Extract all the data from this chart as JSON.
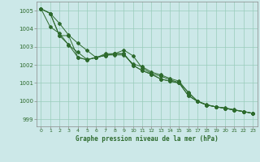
{
  "title": "Graphe pression niveau de la mer (hPa)",
  "bg_color": "#cce8e8",
  "grid_color": "#99ccbb",
  "line_color": "#2d6a2d",
  "xlim": [
    -0.5,
    23.5
  ],
  "ylim": [
    998.6,
    1005.5
  ],
  "xticks": [
    0,
    1,
    2,
    3,
    4,
    5,
    6,
    7,
    8,
    9,
    10,
    11,
    12,
    13,
    14,
    15,
    16,
    17,
    18,
    19,
    20,
    21,
    22,
    23
  ],
  "yticks": [
    999,
    1000,
    1001,
    1002,
    1003,
    1004,
    1005
  ],
  "series1": [
    1005.1,
    1004.85,
    1004.3,
    1003.65,
    1003.2,
    1002.8,
    1002.4,
    1002.55,
    1002.55,
    1002.55,
    1002.05,
    1001.9,
    1001.6,
    1001.45,
    1001.25,
    1001.1,
    1000.45,
    1000.0,
    999.8,
    999.68,
    999.62,
    999.52,
    999.42,
    999.32
  ],
  "series2": [
    1005.1,
    1004.1,
    1003.75,
    1003.1,
    1002.7,
    1002.3,
    1002.4,
    1002.62,
    1002.62,
    1002.82,
    1002.5,
    1001.82,
    1001.52,
    1001.38,
    1001.18,
    1001.02,
    1000.5,
    999.98,
    999.78,
    999.68,
    999.6,
    999.5,
    999.42,
    999.32
  ],
  "series3": [
    1005.1,
    1004.85,
    1003.62,
    1003.12,
    1002.42,
    1002.28,
    1002.42,
    1002.52,
    1002.62,
    1002.62,
    1001.98,
    1001.68,
    1001.48,
    1001.22,
    1001.1,
    1001.0,
    1000.3,
    999.98,
    999.78,
    999.68,
    999.6,
    999.5,
    999.42,
    999.32
  ],
  "series4": [
    1005.1,
    1004.85,
    1003.62,
    1003.62,
    1002.42,
    1002.28,
    1002.42,
    1002.52,
    1002.62,
    1002.62,
    1001.98,
    1001.68,
    1001.48,
    1001.22,
    1001.1,
    1001.0,
    1000.3,
    999.98,
    999.78,
    999.68,
    999.6,
    999.5,
    999.42,
    999.32
  ]
}
